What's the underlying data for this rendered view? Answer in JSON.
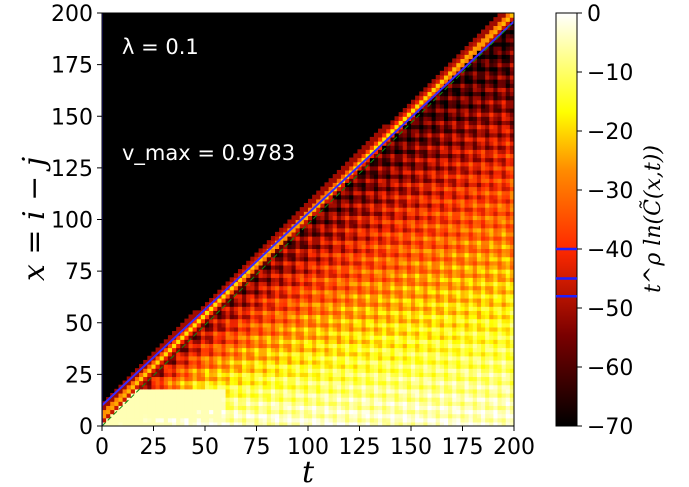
{
  "chart_data": {
    "type": "heatmap",
    "xlabel": "t",
    "ylabel": "x = i − j",
    "xlim": [
      0,
      200
    ],
    "ylim": [
      0,
      200
    ],
    "x_ticks": [
      "0",
      "25",
      "50",
      "75",
      "100",
      "125",
      "150",
      "175",
      "200"
    ],
    "y_ticks": [
      "0",
      "25",
      "50",
      "75",
      "100",
      "125",
      "150",
      "175",
      "200"
    ],
    "colorbar": {
      "label": "t^ρ ln(C̃(x,t))",
      "range": [
        -70,
        0
      ],
      "ticks": [
        "−70",
        "−60",
        "−50",
        "−40",
        "−30",
        "−20",
        "−10",
        "0"
      ],
      "markers": [
        -40,
        -45,
        -48
      ],
      "marker_color": "#1f1fff"
    },
    "annotations": [
      "λ = 0.1",
      "v_max = 0.9783"
    ],
    "lambda": 0.1,
    "v_max": 0.9783,
    "light_cone_slope": 0.9783,
    "colormap": [
      "#000000",
      "#7a0000",
      "#ff2a00",
      "#ffa500",
      "#ffff00",
      "#ffffff"
    ]
  }
}
